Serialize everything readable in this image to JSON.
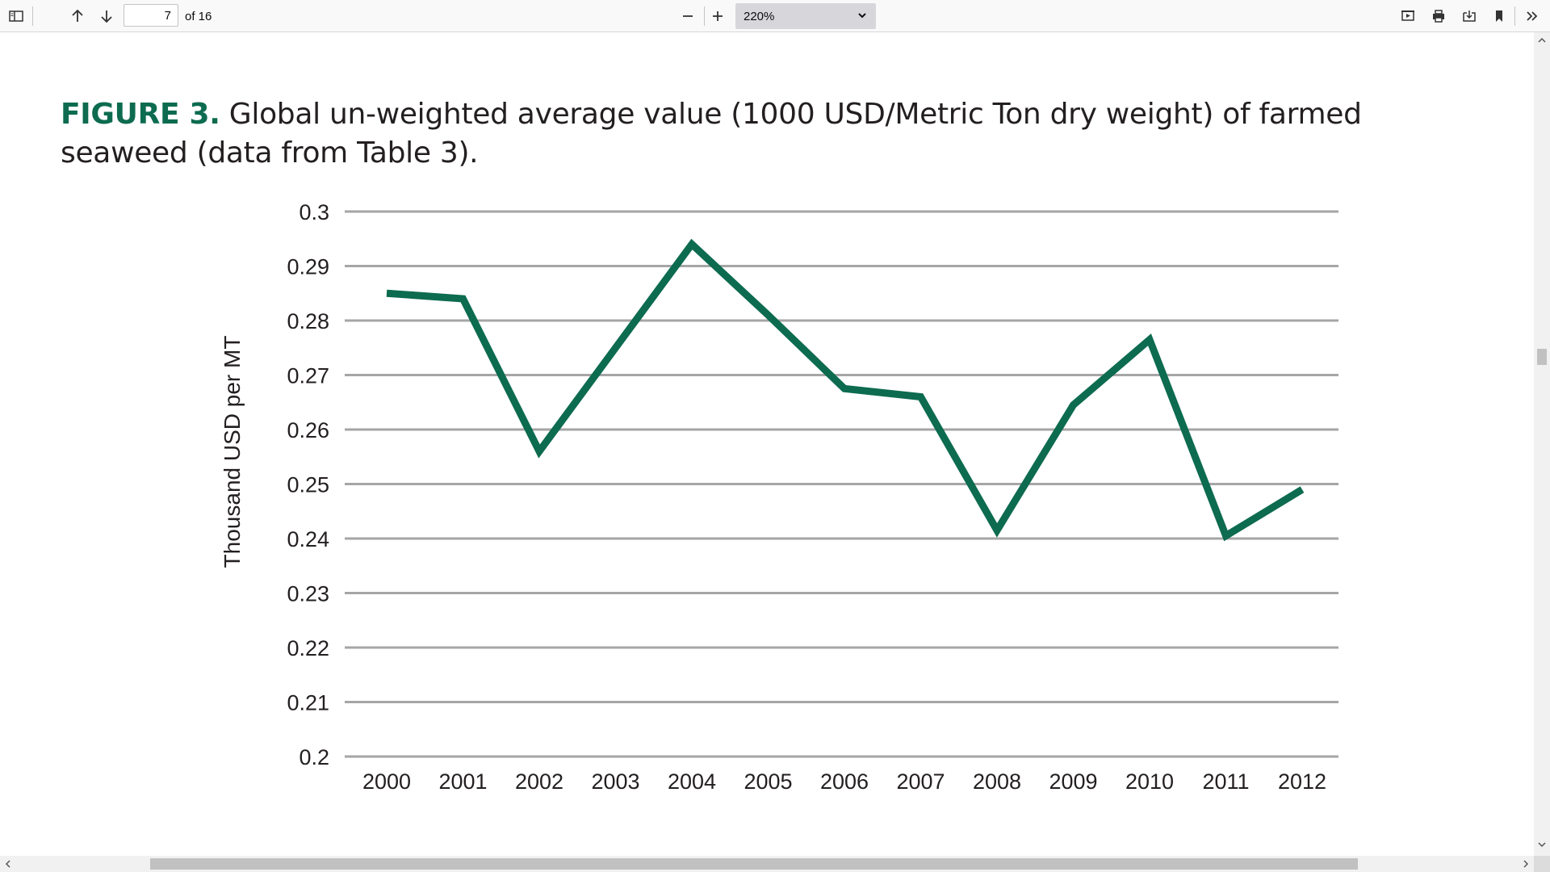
{
  "toolbar": {
    "current_page": "7",
    "page_count_text": "of 16",
    "zoom_value": "220%",
    "icons": {
      "sidebar": "sidebar-toggle-icon",
      "prev": "arrow-up-icon",
      "next": "arrow-down-icon",
      "zoom_out": "minus-icon",
      "zoom_in": "plus-icon",
      "presentation": "presentation-mode-icon",
      "print": "print-icon",
      "save": "download-icon",
      "bookmark": "bookmark-icon",
      "tools": "double-chevron-right-icon"
    }
  },
  "figure": {
    "label": "FIGURE 3.",
    "caption": " Global un-weighted average value (1000 USD/Metric Ton dry weight) of farmed seaweed (data from Table 3)."
  },
  "colors": {
    "accent": "#0d6b4f",
    "series": "#0d6b4f",
    "grid": "#a6a6a6"
  },
  "chart_data": {
    "type": "line",
    "ylabel": "Thousand USD per MT",
    "ylim": [
      0.2,
      0.3
    ],
    "yticks": [
      "0.3",
      "0.29",
      "0.28",
      "0.27",
      "0.26",
      "0.25",
      "0.24",
      "0.23",
      "0.22",
      "0.21",
      "0.2"
    ],
    "grid": true,
    "x": [
      "2000",
      "2001",
      "2002",
      "2003",
      "2004",
      "2005",
      "2006",
      "2007",
      "2008",
      "2009",
      "2010",
      "2011",
      "2012"
    ],
    "values": [
      0.285,
      0.284,
      0.256,
      0.275,
      0.294,
      0.281,
      0.2675,
      0.266,
      0.2415,
      0.2645,
      0.2765,
      0.2405,
      0.249
    ]
  }
}
